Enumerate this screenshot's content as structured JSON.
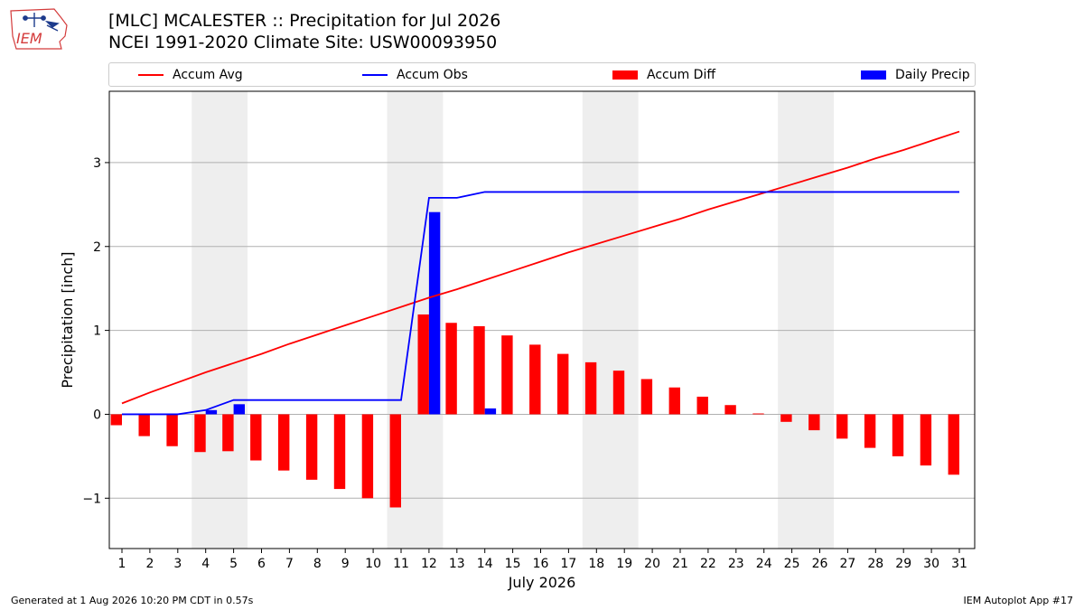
{
  "header": {
    "title_line1": "[MLC] MCALESTER :: Precipitation for Jul 2026",
    "title_line2": "NCEI 1991-2020 Climate Site: USW00093950",
    "logo_text": "IEM"
  },
  "legend": {
    "items": [
      {
        "label": "Accum Avg",
        "kind": "line",
        "color": "#ff0000"
      },
      {
        "label": "Accum Obs",
        "kind": "line",
        "color": "#0000ff"
      },
      {
        "label": "Accum Diff",
        "kind": "patch",
        "color": "#ff0000"
      },
      {
        "label": "Daily Precip",
        "kind": "patch",
        "color": "#0000ff"
      }
    ]
  },
  "footer": {
    "generated": "Generated at 1 Aug 2026 10:20 PM CDT in 0.57s",
    "app": "IEM Autoplot App #17"
  },
  "chart_data": {
    "type": "bar",
    "xlabel": "July 2026",
    "ylabel": "Precipitation [inch]",
    "ylim": [
      -1.6,
      3.85
    ],
    "yticks": [
      -1,
      0,
      1,
      2,
      3
    ],
    "grid": "horizontal",
    "legend_position": "top",
    "weekend_days": [
      4,
      5,
      11,
      12,
      18,
      19,
      25,
      26
    ],
    "categories": [
      1,
      2,
      3,
      4,
      5,
      6,
      7,
      8,
      9,
      10,
      11,
      12,
      13,
      14,
      15,
      16,
      17,
      18,
      19,
      20,
      21,
      22,
      23,
      24,
      25,
      26,
      27,
      28,
      29,
      30,
      31
    ],
    "series": [
      {
        "name": "Accum Avg",
        "type": "line",
        "color": "#ff0000",
        "values": [
          0.13,
          0.26,
          0.38,
          0.5,
          0.61,
          0.72,
          0.84,
          0.95,
          1.06,
          1.17,
          1.28,
          1.39,
          1.49,
          1.6,
          1.71,
          1.82,
          1.93,
          2.03,
          2.13,
          2.23,
          2.33,
          2.44,
          2.54,
          2.64,
          2.74,
          2.84,
          2.94,
          3.05,
          3.15,
          3.26,
          3.37
        ]
      },
      {
        "name": "Accum Obs",
        "type": "line",
        "color": "#0000ff",
        "values": [
          0.0,
          0.0,
          0.0,
          0.05,
          0.17,
          0.17,
          0.17,
          0.17,
          0.17,
          0.17,
          0.17,
          2.58,
          2.58,
          2.65,
          2.65,
          2.65,
          2.65,
          2.65,
          2.65,
          2.65,
          2.65,
          2.65,
          2.65,
          2.65,
          2.65,
          2.65,
          2.65,
          2.65,
          2.65,
          2.65,
          2.65
        ]
      },
      {
        "name": "Accum Diff",
        "type": "bar",
        "color": "#ff0000",
        "values": [
          -0.13,
          -0.26,
          -0.38,
          -0.45,
          -0.44,
          -0.55,
          -0.67,
          -0.78,
          -0.89,
          -1.0,
          -1.11,
          1.19,
          1.09,
          1.05,
          0.94,
          0.83,
          0.72,
          0.62,
          0.52,
          0.42,
          0.32,
          0.21,
          0.11,
          0.01,
          -0.09,
          -0.19,
          -0.29,
          -0.4,
          -0.5,
          -0.61,
          -0.72
        ]
      },
      {
        "name": "Daily Precip",
        "type": "bar",
        "color": "#0000ff",
        "values": [
          0,
          0,
          0,
          0.05,
          0.12,
          0,
          0,
          0,
          0,
          0,
          0,
          2.41,
          0,
          0.07,
          0,
          0,
          0,
          0,
          0,
          0,
          0,
          0,
          0,
          0,
          0,
          0,
          0,
          0,
          0,
          0,
          0
        ]
      }
    ]
  }
}
